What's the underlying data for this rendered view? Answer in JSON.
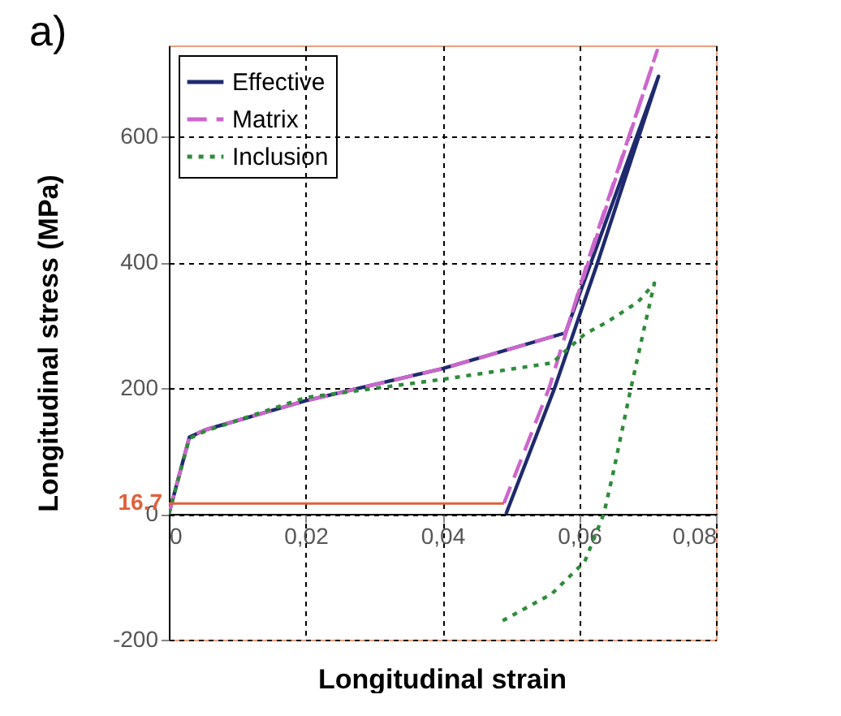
{
  "chart_data": {
    "type": "line",
    "xlabel": "Longitudinal strain",
    "ylabel": "Longitudinal stress (MPa)",
    "annotations": [
      "a)",
      {
        "text": "16.7",
        "x": 0,
        "y": 16.7
      }
    ],
    "xlim": [
      0,
      0.08
    ],
    "ylim": [
      -200,
      745
    ],
    "xticks": [
      0,
      {
        "value": 0.02,
        "label": "0,02"
      },
      {
        "value": 0.04,
        "label": "0,04"
      },
      {
        "value": 0.06,
        "label": "0,06"
      },
      {
        "value": 0.08,
        "label": "0,08"
      }
    ],
    "yticks": [
      -200,
      0,
      200,
      400,
      600
    ],
    "grid": true,
    "legend": "top left",
    "marker": "none",
    "series": [
      {
        "name": "Effective",
        "color": "#1f2a6e",
        "line_style": "solid",
        "x": [
          0,
          0.003,
          0.0054,
          0.02,
          0.04,
          0.058,
          0.0716,
          0.0627,
          0.0564,
          0.0493
        ],
        "values": [
          0,
          122,
          134,
          180,
          231,
          288,
          696,
          400,
          200,
          0
        ]
      },
      {
        "name": "Matrix",
        "color": "#cc66cc",
        "line_style": "dashed",
        "x": [
          0,
          0.003,
          0.0054,
          0.02,
          0.04,
          0.058,
          0.0714,
          0.0612,
          0.0556,
          0.049
        ],
        "values": [
          0,
          122,
          134,
          180,
          231,
          288,
          737,
          400,
          200,
          17
        ]
      },
      {
        "name": "Inclusion",
        "color": "#2e8b3a",
        "line_style": "dotted",
        "x": [
          0,
          0.003,
          0.0054,
          0.02,
          0.04,
          0.056,
          0.0608,
          0.0639,
          0.0686,
          0.071,
          0.0695,
          0.0675,
          0.065,
          0.0636,
          0.0608,
          0.056,
          0.0481
        ],
        "values": [
          0,
          120,
          132,
          185,
          214,
          240,
          286,
          304,
          337,
          367,
          295,
          197,
          67,
          0,
          -76,
          -127,
          -174
        ]
      },
      {
        "color": "#e0603c",
        "line_style": "solid",
        "x": [
          0,
          0.049
        ],
        "values": [
          16.7,
          16.7
        ]
      }
    ]
  }
}
